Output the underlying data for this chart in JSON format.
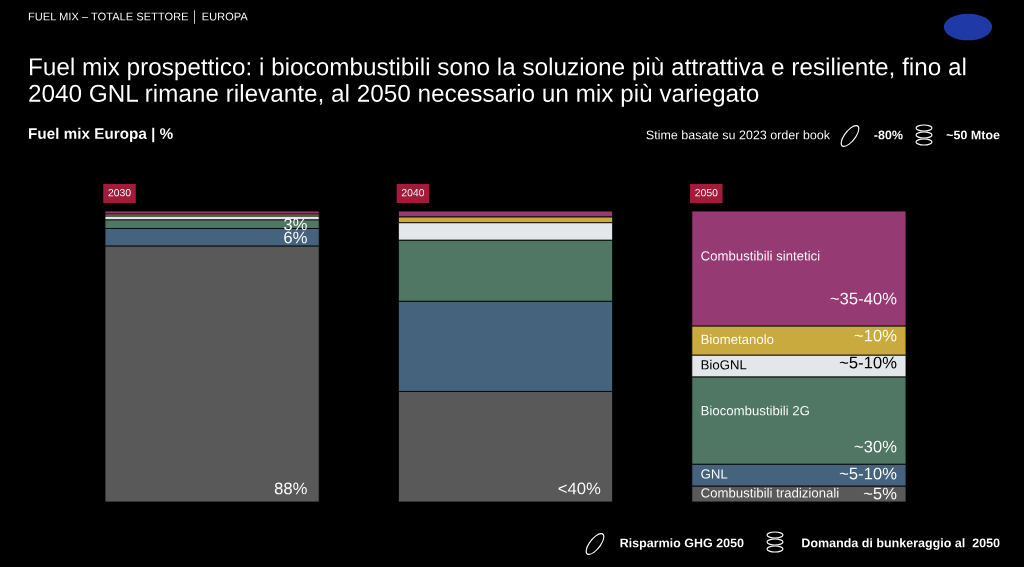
{
  "chart_data": {
    "type": "bar",
    "stacked": true,
    "legend": false,
    "ylim": [
      0,
      100
    ],
    "title": "Fuel mix prospettico: i biocombustibili sono la soluzione più attrattiva e resiliente, fino al 2040 GNL rimane rilevante, al 2050 necessario un mix più variegato",
    "subtitle": "Fuel mix Europa | %",
    "categories": [
      "2030",
      "2040",
      "2050"
    ],
    "series": [
      {
        "name": "Combustibili tradizionali",
        "color": "#595959",
        "values": [
          88,
          38,
          5.5
        ],
        "value_labels": [
          "88%",
          "<40%",
          null
        ]
      },
      {
        "name": "GNL",
        "color": "#46637d",
        "values": [
          6,
          31,
          7.5
        ],
        "value_labels": [
          "6%",
          null,
          null
        ]
      },
      {
        "name": "Biocombustibili 2G",
        "color": "#4f7763",
        "values": [
          3,
          21,
          30
        ],
        "value_labels": [
          "3%",
          null,
          null
        ]
      },
      {
        "name": "BioGNL",
        "color": "#e4e7ea",
        "values": [
          1.3,
          6,
          7.5
        ]
      },
      {
        "name": "Biometanolo",
        "color": "#c9aa3f",
        "values": [
          0.7,
          2,
          10
        ]
      },
      {
        "name": "Combustibili sintetici",
        "color": "#963a74",
        "values": [
          1,
          2,
          39.5
        ]
      }
    ],
    "annotations": [
      "FUEL MIX – TOTALE SETTORE │ EUROPA",
      "Stime basate su 2023 order book",
      "-80%",
      "~50 Mtoe",
      "Risparmio GHG 2050",
      "Domanda di bunkeraggio al  2050",
      "~5%",
      "~5-10%",
      "~30%",
      "~5-10%",
      "~10%",
      "~35-40%"
    ]
  }
}
